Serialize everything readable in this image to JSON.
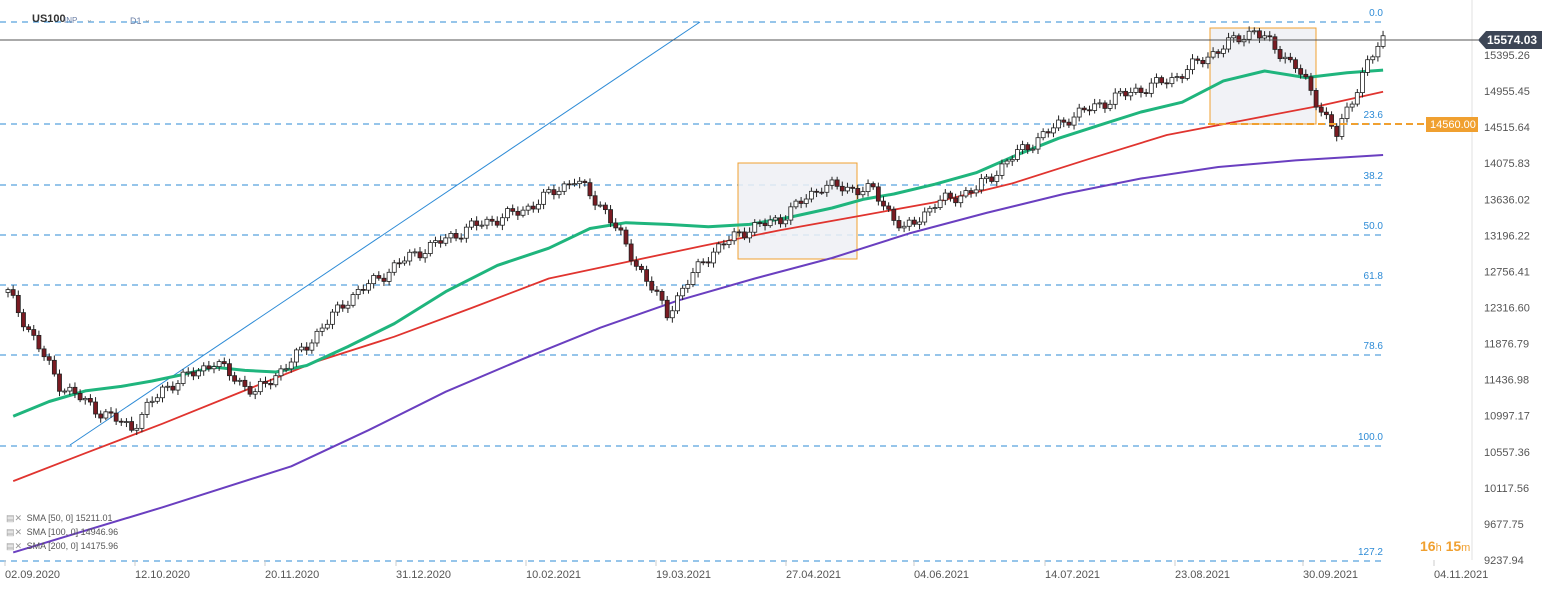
{
  "header": {
    "symbol": "US100",
    "mode": "INP",
    "interval": "D1"
  },
  "price_axis": {
    "current_label": "15574.03",
    "level_label": "14560.00",
    "ticks": [
      "15395.26",
      "14955.45",
      "14515.64",
      "14075.83",
      "13636.02",
      "13196.22",
      "12756.41",
      "12316.60",
      "11876.79",
      "11436.98",
      "10997.17",
      "10557.36",
      "10117.56",
      "9677.75",
      "9237.94"
    ]
  },
  "date_axis": [
    "02.09.2020",
    "12.10.2020",
    "20.11.2020",
    "31.12.2020",
    "10.02.2021",
    "19.03.2021",
    "27.04.2021",
    "04.06.2021",
    "14.07.2021",
    "23.08.2021",
    "30.09.2021",
    "04.11.2021"
  ],
  "fib_levels": [
    "0.0",
    "23.6",
    "38.2",
    "50.0",
    "61.8",
    "78.6",
    "100.0",
    "127.2"
  ],
  "legend": [
    {
      "name": "SMA",
      "params": "[50, 0]",
      "value": "15211.01",
      "color": "#1fb57d"
    },
    {
      "name": "SMA",
      "params": "[100, 0]",
      "value": "14946.96",
      "color": "#e0342f"
    },
    {
      "name": "SMA",
      "params": "[200, 0]",
      "value": "14175.96",
      "color": "#6a3fc0"
    }
  ],
  "timer": {
    "hours": "16",
    "h": "h",
    "minutes": "15",
    "m": "m"
  },
  "colors": {
    "sma50": "#1fb57d",
    "sma100": "#e0342f",
    "sma200": "#6a3fc0",
    "fib": "#2d8bd6",
    "level": "#f0a030",
    "bull": "#ffffff",
    "bear": "#7a1b22"
  },
  "chart_data": {
    "type": "candlestick",
    "title": "US100 D1",
    "ylim": [
      9237.94,
      15800
    ],
    "current_price": 15574.03,
    "horizontal_level": 14560.0,
    "fibonacci": [
      {
        "level": "0.0",
        "price": 15660
      },
      {
        "level": "23.6",
        "price": 14560
      },
      {
        "level": "38.2",
        "price": 13825
      },
      {
        "level": "50.0",
        "price": 13265
      },
      {
        "level": "61.8",
        "price": 12620
      },
      {
        "level": "78.6",
        "price": 11830
      },
      {
        "level": "100.0",
        "price": 10827
      },
      {
        "level": "127.2",
        "price": 9278
      }
    ],
    "sma50_path": [
      [
        1,
        10990
      ],
      [
        8,
        11170
      ],
      [
        15,
        11300
      ],
      [
        22,
        11355
      ],
      [
        28,
        11420
      ],
      [
        34,
        11500
      ],
      [
        40,
        11590
      ],
      [
        46,
        11550
      ],
      [
        52,
        11530
      ],
      [
        58,
        11610
      ],
      [
        66,
        11840
      ],
      [
        75,
        12120
      ],
      [
        85,
        12510
      ],
      [
        95,
        12830
      ],
      [
        105,
        13040
      ],
      [
        113,
        13280
      ],
      [
        120,
        13350
      ],
      [
        128,
        13330
      ],
      [
        136,
        13300
      ],
      [
        144,
        13330
      ],
      [
        152,
        13420
      ],
      [
        160,
        13530
      ],
      [
        166,
        13635
      ],
      [
        172,
        13700
      ],
      [
        180,
        13820
      ],
      [
        188,
        13960
      ],
      [
        196,
        14180
      ],
      [
        204,
        14380
      ],
      [
        212,
        14540
      ],
      [
        220,
        14700
      ],
      [
        228,
        14820
      ],
      [
        236,
        15080
      ],
      [
        244,
        15200
      ],
      [
        252,
        15120
      ],
      [
        260,
        15180
      ],
      [
        267,
        15211
      ]
    ],
    "sma100_path": [
      [
        1,
        10200
      ],
      [
        15,
        10540
      ],
      [
        30,
        10900
      ],
      [
        45,
        11280
      ],
      [
        60,
        11660
      ],
      [
        75,
        11960
      ],
      [
        90,
        12310
      ],
      [
        105,
        12670
      ],
      [
        120,
        12870
      ],
      [
        135,
        13070
      ],
      [
        150,
        13260
      ],
      [
        165,
        13430
      ],
      [
        180,
        13600
      ],
      [
        195,
        13830
      ],
      [
        210,
        14130
      ],
      [
        225,
        14420
      ],
      [
        240,
        14600
      ],
      [
        255,
        14780
      ],
      [
        267,
        14947
      ]
    ],
    "sma200_path": [
      [
        1,
        9330
      ],
      [
        30,
        9880
      ],
      [
        55,
        10380
      ],
      [
        70,
        10820
      ],
      [
        85,
        11290
      ],
      [
        100,
        11690
      ],
      [
        115,
        12070
      ],
      [
        130,
        12400
      ],
      [
        145,
        12670
      ],
      [
        160,
        12920
      ],
      [
        175,
        13220
      ],
      [
        190,
        13470
      ],
      [
        205,
        13700
      ],
      [
        220,
        13890
      ],
      [
        235,
        14030
      ],
      [
        250,
        14110
      ],
      [
        267,
        14176
      ]
    ],
    "ohlc": "8 candlestick segments: Sep-Oct 2020 decline to 10830, rise to 13950 by Feb 2021, pullback to 12250, consolidation near 13900 in April, rise to 15700 in Aug 2021, pullback to 14400, rebound to 15574"
  }
}
